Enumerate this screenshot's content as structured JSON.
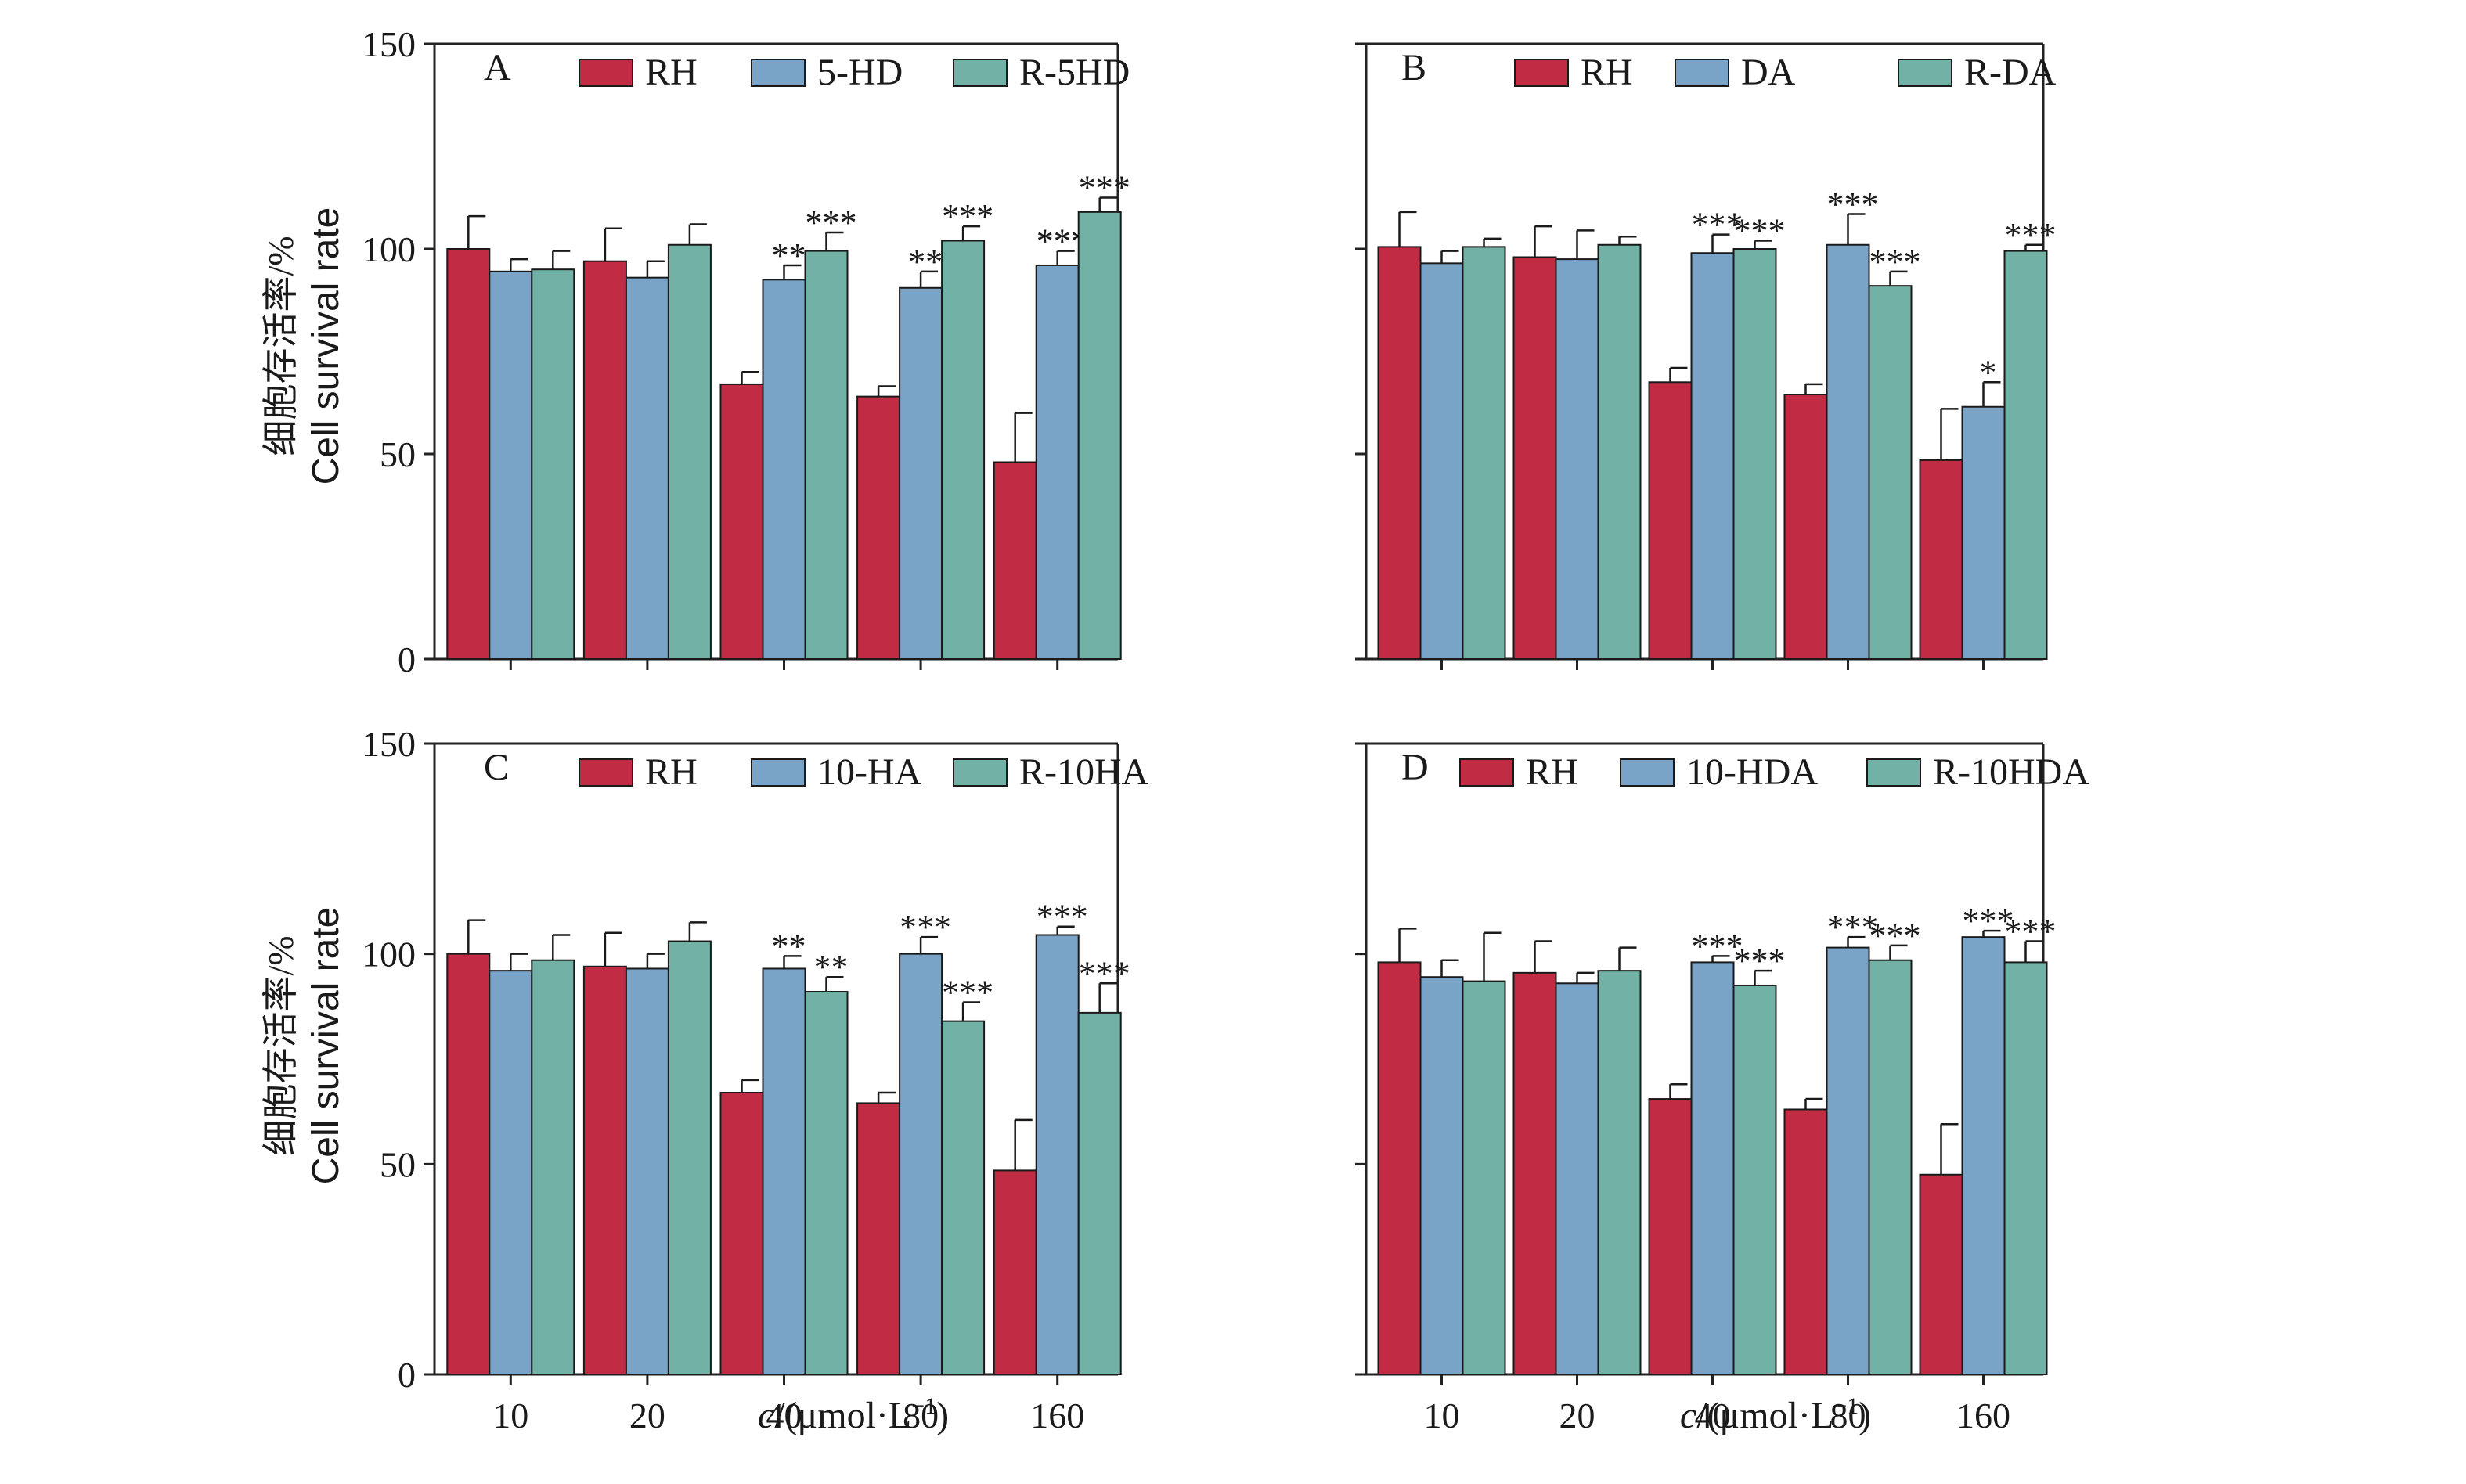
{
  "figure": {
    "y_label_cn": "细胞存活率/%",
    "y_label_en": "Cell survival rate",
    "x_label_italic": "c",
    "x_label_rest": "/(μmol·L",
    "x_label_sup": "−1",
    "x_label_close": ")"
  },
  "colors": {
    "RH": "#c12c44",
    "compound": "#7aa3c8",
    "combination": "#72b2a6"
  },
  "chart_data": [
    {
      "type": "bar",
      "panel": "A",
      "categories": [
        "10",
        "20",
        "40",
        "80",
        "160"
      ],
      "ylim": [
        0,
        150
      ],
      "yticks": [
        "0",
        "50",
        "100",
        "150"
      ],
      "series": [
        {
          "name": "RH",
          "values": [
            100,
            97,
            67,
            64,
            48
          ],
          "errors": [
            8,
            8,
            3,
            2.5,
            12
          ],
          "sig": [
            "",
            "",
            "",
            "",
            ""
          ]
        },
        {
          "name": "5-HD",
          "values": [
            94.5,
            93,
            92.5,
            90.5,
            96
          ],
          "errors": [
            3,
            4,
            3.5,
            4,
            3.5
          ],
          "sig": [
            "",
            "",
            "**",
            "**",
            "***"
          ]
        },
        {
          "name": "R-5HD",
          "values": [
            95,
            101,
            99.5,
            102,
            109
          ],
          "errors": [
            4.5,
            5,
            4.5,
            3.5,
            3.5
          ],
          "sig": [
            "",
            "",
            "***",
            "***",
            "***"
          ]
        }
      ]
    },
    {
      "type": "bar",
      "panel": "B",
      "categories": [
        "10",
        "20",
        "40",
        "80",
        "160"
      ],
      "ylim": [
        0,
        150
      ],
      "yticks": [],
      "series": [
        {
          "name": "RH",
          "values": [
            100.5,
            98,
            67.5,
            64.5,
            48.5
          ],
          "errors": [
            8.5,
            7.5,
            3.5,
            2.5,
            12.5
          ],
          "sig": [
            "",
            "",
            "",
            "",
            ""
          ]
        },
        {
          "name": "DA",
          "values": [
            96.5,
            97.5,
            99,
            101,
            61.5
          ],
          "errors": [
            3,
            7,
            4.5,
            7.5,
            6
          ],
          "sig": [
            "",
            "",
            "***",
            "***",
            "*"
          ]
        },
        {
          "name": "R-DA",
          "values": [
            100.5,
            101,
            100,
            91,
            99.5
          ],
          "errors": [
            2,
            2,
            2,
            3.5,
            1.5
          ],
          "sig": [
            "",
            "",
            "***",
            "***",
            "***"
          ]
        }
      ]
    },
    {
      "type": "bar",
      "panel": "C",
      "categories": [
        "10",
        "20",
        "40",
        "80",
        "160"
      ],
      "ylim": [
        0,
        150
      ],
      "yticks": [
        "0",
        "50",
        "100",
        "150"
      ],
      "series": [
        {
          "name": "RH",
          "values": [
            100,
            97,
            67,
            64.5,
            48.5
          ],
          "errors": [
            8,
            8,
            3,
            2.5,
            12
          ],
          "sig": [
            "",
            "",
            "",
            "",
            ""
          ]
        },
        {
          "name": "10-HA",
          "values": [
            96,
            96.5,
            96.5,
            100,
            104.5
          ],
          "errors": [
            4,
            3.5,
            3,
            4,
            2
          ],
          "sig": [
            "",
            "",
            "**",
            "***",
            "***"
          ]
        },
        {
          "name": "R-10HA",
          "values": [
            98.5,
            103,
            91,
            84,
            86
          ],
          "errors": [
            6,
            4.5,
            3.5,
            4.5,
            7
          ],
          "sig": [
            "",
            "",
            "**",
            "***",
            "***"
          ]
        }
      ]
    },
    {
      "type": "bar",
      "panel": "D",
      "categories": [
        "10",
        "20",
        "40",
        "80",
        "160"
      ],
      "ylim": [
        0,
        150
      ],
      "yticks": [],
      "series": [
        {
          "name": "RH",
          "values": [
            98,
            95.5,
            65.5,
            63,
            47.5
          ],
          "errors": [
            8,
            7.5,
            3.5,
            2.5,
            12
          ],
          "sig": [
            "",
            "",
            "",
            "",
            ""
          ]
        },
        {
          "name": "10-HDA",
          "values": [
            94.5,
            93,
            98,
            101.5,
            104
          ],
          "errors": [
            4,
            2.5,
            1.5,
            2.5,
            1.5
          ],
          "sig": [
            "",
            "",
            "***",
            "***",
            "***"
          ]
        },
        {
          "name": "R-10HDA",
          "values": [
            93.5,
            96,
            92.5,
            98.5,
            98
          ],
          "errors": [
            11.5,
            5.5,
            3.5,
            3.5,
            5
          ],
          "sig": [
            "",
            "",
            "***",
            "***",
            "***"
          ]
        }
      ]
    }
  ]
}
